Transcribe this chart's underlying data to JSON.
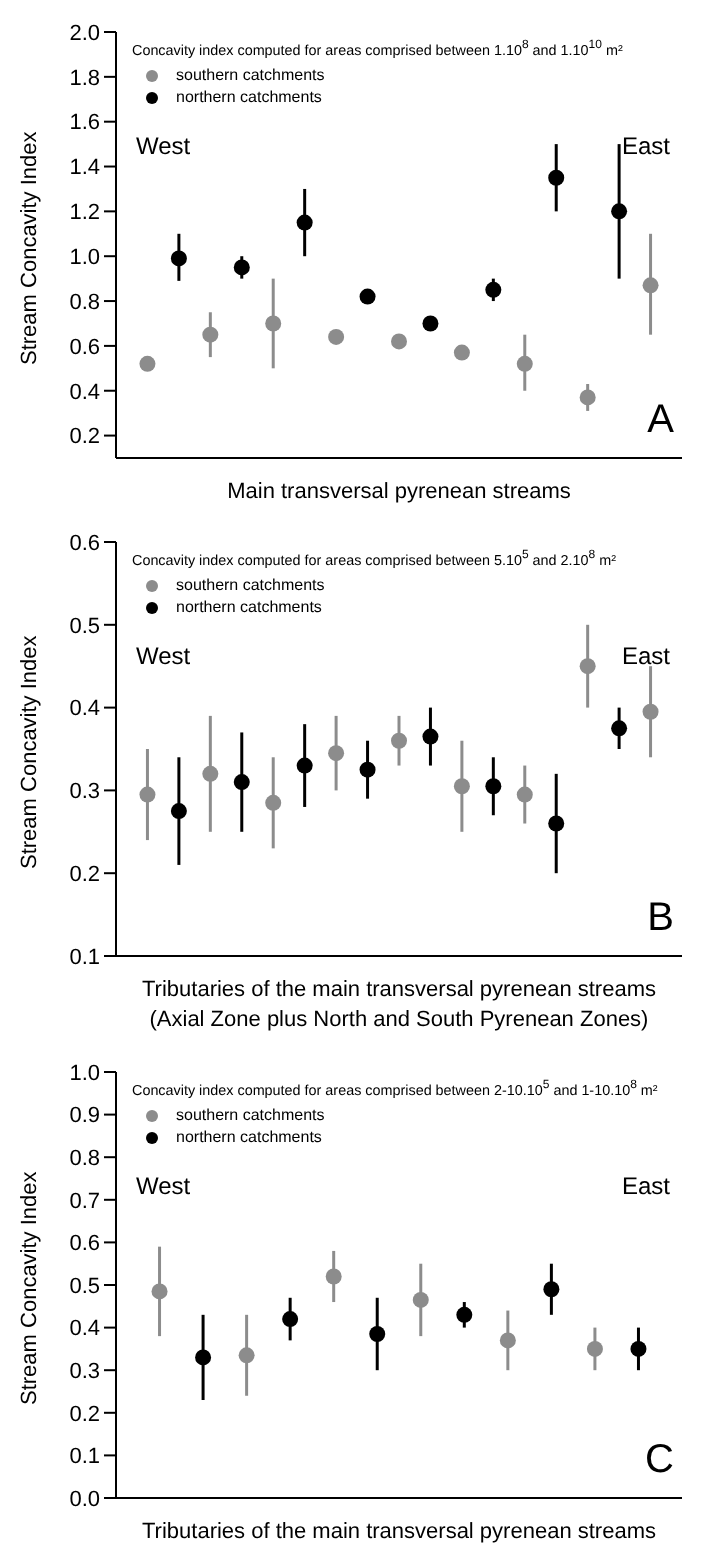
{
  "chart_data": [
    {
      "type": "scatter",
      "legend_title": "Concavity index computed for areas comprised between 1.10$^{8}$ and 1.10$^{10}$ m²",
      "xlabel": "Main transversal pyrenean streams",
      "ylabel": "Stream Concavity Index",
      "categories": [
        null,
        null,
        null,
        null,
        null,
        null,
        null,
        null,
        null,
        null,
        null,
        null,
        null,
        null,
        null,
        null,
        null
      ],
      "ylim": [
        0.1,
        2.0
      ],
      "yticks": [
        0.2,
        0.4,
        0.6,
        0.8,
        {
          "value": 1,
          "label": "1.0"
        },
        1.2,
        1.4,
        1.6,
        1.8,
        {
          "value": 2,
          "label": "2.0"
        }
      ],
      "legend": "top left",
      "marker": "circle",
      "grid": false,
      "tick_labels": "y",
      "annotations": [
        "West",
        "East",
        "A"
      ],
      "series": [
        {
          "name": "southern catchments",
          "color": "#8c8c8c",
          "values": [
            0.52,
            null,
            0.65,
            null,
            0.7,
            null,
            0.64,
            null,
            0.62,
            null,
            0.57,
            null,
            0.52,
            null,
            0.37,
            null,
            0.87
          ],
          "errors": [
            0.02,
            null,
            [
              0.55,
              0.75
            ],
            null,
            [
              0.5,
              0.9
            ],
            null,
            null,
            null,
            null,
            null,
            0.02,
            null,
            [
              0.4,
              0.65
            ],
            null,
            [
              0.31,
              0.43
            ],
            null,
            [
              0.65,
              1.1
            ]
          ]
        },
        {
          "name": "northern catchments",
          "color": "#000000",
          "values": [
            null,
            0.99,
            null,
            0.95,
            null,
            1.15,
            null,
            0.82,
            null,
            0.7,
            null,
            0.85,
            null,
            1.35,
            null,
            1.2,
            null
          ],
          "errors": [
            null,
            [
              0.89,
              1.1
            ],
            null,
            [
              0.9,
              1.0
            ],
            null,
            [
              1.0,
              1.3
            ],
            null,
            null,
            null,
            null,
            null,
            [
              0.8,
              0.9
            ],
            null,
            [
              1.2,
              1.5
            ],
            null,
            [
              0.9,
              1.5
            ],
            null
          ]
        }
      ]
    },
    {
      "type": "scatter",
      "legend_title": "Concavity index computed for areas comprised between 5.10$^{5}$ and 2.10$^{8}$ m²",
      "xlabel": "Tributaries of the main transversal pyrenean streams\n(Axial Zone plus North and South Pyrenean Zones)",
      "ylabel": "Stream Concavity Index",
      "categories": [
        null,
        null,
        null,
        null,
        null,
        null,
        null,
        null,
        null,
        null,
        null,
        null,
        null,
        null,
        null,
        null,
        null
      ],
      "ylim": [
        0.1,
        0.6
      ],
      "yticks": [
        0.1,
        0.2,
        0.3,
        0.4,
        0.5,
        0.6
      ],
      "legend": "top left",
      "marker": "circle",
      "grid": false,
      "tick_labels": "y",
      "annotations": [
        "West",
        "East",
        "B"
      ],
      "series": [
        {
          "name": "southern catchments",
          "color": "#8c8c8c",
          "values": [
            0.295,
            null,
            0.32,
            null,
            0.285,
            null,
            0.345,
            null,
            0.36,
            null,
            0.305,
            null,
            0.295,
            null,
            0.45,
            null,
            0.395
          ],
          "errors": [
            [
              0.24,
              0.35
            ],
            null,
            [
              0.25,
              0.39
            ],
            null,
            [
              0.23,
              0.34
            ],
            null,
            [
              0.3,
              0.39
            ],
            null,
            [
              0.33,
              0.39
            ],
            null,
            [
              0.25,
              0.36
            ],
            null,
            [
              0.26,
              0.33
            ],
            null,
            [
              0.4,
              0.5
            ],
            null,
            [
              0.34,
              0.45
            ]
          ]
        },
        {
          "name": "northern catchments",
          "color": "#000000",
          "values": [
            null,
            0.275,
            null,
            0.31,
            null,
            0.33,
            null,
            0.325,
            null,
            0.365,
            null,
            0.305,
            null,
            0.26,
            null,
            0.375,
            null
          ],
          "errors": [
            null,
            [
              0.21,
              0.34
            ],
            null,
            [
              0.25,
              0.37
            ],
            null,
            [
              0.28,
              0.38
            ],
            null,
            [
              0.29,
              0.36
            ],
            null,
            [
              0.33,
              0.4
            ],
            null,
            [
              0.27,
              0.34
            ],
            null,
            [
              0.2,
              0.32
            ],
            null,
            [
              0.35,
              0.4
            ],
            null
          ]
        }
      ]
    },
    {
      "type": "scatter",
      "legend_title": "Concavity index computed for areas comprised between 2-10.10$^{5}$ and 1-10.10$^{8}$ m²",
      "xlabel": "Tributaries of the main transversal pyrenean streams",
      "ylabel": "Stream Concavity Index",
      "categories": [
        null,
        null,
        null,
        null,
        null,
        null,
        null,
        null,
        null,
        null,
        null,
        null
      ],
      "ylim": [
        0.0,
        1.0
      ],
      "yticks": [
        {
          "value": 0,
          "label": "0.0"
        },
        0.1,
        0.2,
        0.3,
        0.4,
        0.5,
        0.6,
        0.7,
        0.8,
        0.9,
        {
          "value": 1,
          "label": "1.0"
        }
      ],
      "legend": "top left",
      "marker": "circle",
      "grid": false,
      "tick_labels": "y",
      "annotations": [
        "West",
        "East",
        "C"
      ],
      "series": [
        {
          "name": "southern catchments",
          "color": "#8c8c8c",
          "values": [
            0.485,
            null,
            0.335,
            null,
            0.52,
            null,
            0.465,
            null,
            0.37,
            null,
            0.35,
            null
          ],
          "errors": [
            [
              0.38,
              0.59
            ],
            null,
            [
              0.24,
              0.43
            ],
            null,
            [
              0.46,
              0.58
            ],
            null,
            [
              0.38,
              0.55
            ],
            null,
            [
              0.3,
              0.44
            ],
            null,
            [
              0.3,
              0.4
            ],
            null
          ]
        },
        {
          "name": "northern catchments",
          "color": "#000000",
          "values": [
            null,
            0.33,
            null,
            0.42,
            null,
            0.385,
            null,
            0.43,
            null,
            0.49,
            null,
            0.35
          ],
          "errors": [
            null,
            [
              0.23,
              0.43
            ],
            null,
            [
              0.37,
              0.47
            ],
            null,
            [
              0.3,
              0.47
            ],
            null,
            [
              0.4,
              0.46
            ],
            null,
            [
              0.43,
              0.55
            ],
            null,
            [
              0.3,
              0.4
            ]
          ]
        }
      ]
    }
  ]
}
